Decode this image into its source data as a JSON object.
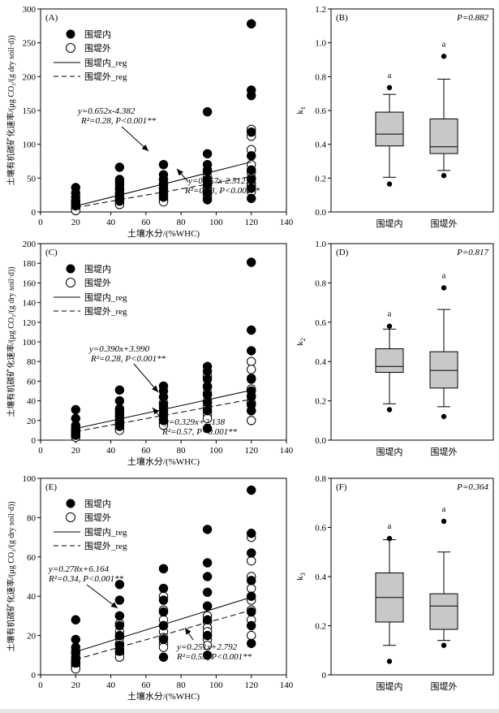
{
  "chart_data": [
    {
      "panel": "(A)",
      "type": "scatter",
      "xlabel": "土壤水分/(%WHC)",
      "ylabel": "土壤有机碳矿化速率/(μg CO₂/(g dry soil·d))",
      "xlim": [
        0,
        140
      ],
      "ylim": [
        0,
        300
      ],
      "xticks": [
        0,
        20,
        40,
        60,
        80,
        100,
        120,
        140
      ],
      "yticks": [
        0,
        50,
        100,
        150,
        200,
        250,
        300
      ],
      "legend": [
        "围堤内",
        "围堤外",
        "围堤内_reg",
        "围堤外_reg"
      ],
      "legend_position": "top-left",
      "series": [
        {
          "name": "围堤内",
          "marker": "filled-circle",
          "x": [
            20,
            20,
            20,
            20,
            20,
            20,
            45,
            45,
            45,
            45,
            45,
            45,
            45,
            70,
            70,
            70,
            70,
            70,
            70,
            70,
            95,
            95,
            95,
            95,
            95,
            95,
            95,
            95,
            120,
            120,
            120,
            120,
            120,
            120,
            120,
            120,
            120
          ],
          "y": [
            36,
            28,
            22,
            17,
            12,
            9,
            66,
            48,
            44,
            35,
            28,
            22,
            16,
            70,
            55,
            48,
            42,
            35,
            28,
            22,
            148,
            86,
            70,
            60,
            48,
            40,
            28,
            18,
            278,
            180,
            172,
            118,
            83,
            62,
            48,
            35,
            20
          ]
        },
        {
          "name": "围堤外",
          "marker": "open-circle",
          "x": [
            20,
            20,
            20,
            20,
            20,
            20,
            20,
            45,
            45,
            45,
            45,
            45,
            45,
            45,
            45,
            70,
            70,
            70,
            70,
            70,
            70,
            70,
            70,
            95,
            95,
            95,
            95,
            95,
            95,
            95,
            95,
            120,
            120,
            120,
            120,
            120,
            120,
            120,
            120,
            120
          ],
          "y": [
            16,
            12,
            9,
            7,
            5,
            3,
            2,
            40,
            33,
            28,
            24,
            20,
            17,
            13,
            11,
            48,
            40,
            35,
            30,
            25,
            20,
            17,
            15,
            62,
            52,
            45,
            40,
            35,
            30,
            26,
            22,
            122,
            112,
            92,
            70,
            58,
            50,
            42,
            38,
            30
          ]
        }
      ],
      "regressions": [
        {
          "name": "围堤内_reg",
          "style": "solid",
          "slope": 0.652,
          "intercept": -4.382,
          "x_range": [
            20,
            120
          ],
          "eq": "y=0.652x-4.382",
          "stats": "R²=0.28, P<0.001**"
        },
        {
          "name": "围堤外_reg",
          "style": "dashed",
          "slope": 0.457,
          "intercept": -2.512,
          "x_range": [
            20,
            120
          ],
          "eq": "y=0.457x-2.512",
          "stats": "R²=0.53, P<0.001**"
        }
      ]
    },
    {
      "panel": "(B)",
      "type": "boxplot",
      "ylabel": "k1",
      "ylim": [
        0,
        1.2
      ],
      "yticks": [
        0.0,
        0.2,
        0.4,
        0.6,
        0.8,
        1.0,
        1.2
      ],
      "p_value": "P=0.882",
      "categories": [
        "围堤内",
        "围堤外"
      ],
      "boxes": [
        {
          "whisker_low": 0.205,
          "q1": 0.39,
          "median": 0.46,
          "q3": 0.59,
          "whisker_high": 0.695,
          "outliers": [
            0.165,
            0.735
          ],
          "letter": "a"
        },
        {
          "whisker_low": 0.245,
          "q1": 0.345,
          "median": 0.385,
          "q3": 0.55,
          "whisker_high": 0.785,
          "outliers": [
            0.215,
            0.92
          ],
          "letter": "a"
        }
      ]
    },
    {
      "panel": "(C)",
      "type": "scatter",
      "xlabel": "土壤水分/(%WHC)",
      "ylabel": "土壤有机碳矿化速率/(μg CO₂/(g dry soil·d))",
      "xlim": [
        0,
        140
      ],
      "ylim": [
        0,
        200
      ],
      "xticks": [
        0,
        20,
        40,
        60,
        80,
        100,
        120,
        140
      ],
      "yticks": [
        0,
        20,
        40,
        60,
        80,
        100,
        120,
        140,
        160,
        180,
        200
      ],
      "legend": [
        "围堤内",
        "围堤外",
        "围堤内_reg",
        "围堤外_reg"
      ],
      "legend_position": "top-left",
      "series": [
        {
          "name": "围堤内",
          "marker": "filled-circle",
          "x": [
            20,
            20,
            20,
            20,
            20,
            20,
            45,
            45,
            45,
            45,
            45,
            45,
            45,
            70,
            70,
            70,
            70,
            70,
            70,
            70,
            95,
            95,
            95,
            95,
            95,
            95,
            95,
            95,
            120,
            120,
            120,
            120,
            120,
            120,
            120,
            120
          ],
          "y": [
            31,
            22,
            15,
            12,
            9,
            5,
            51,
            40,
            32,
            28,
            24,
            18,
            14,
            55,
            50,
            44,
            36,
            30,
            25,
            20,
            75,
            70,
            62,
            54,
            46,
            38,
            30,
            12,
            181,
            112,
            91,
            62,
            50,
            44,
            36,
            30
          ]
        },
        {
          "name": "围堤外",
          "marker": "open-circle",
          "x": [
            20,
            20,
            20,
            20,
            20,
            20,
            20,
            45,
            45,
            45,
            45,
            45,
            45,
            45,
            45,
            70,
            70,
            70,
            70,
            70,
            70,
            70,
            70,
            95,
            95,
            95,
            95,
            95,
            95,
            95,
            95,
            120,
            120,
            120,
            120,
            120,
            120,
            120,
            120
          ],
          "y": [
            12,
            10,
            8,
            7,
            5,
            4,
            3,
            30,
            27,
            24,
            21,
            18,
            15,
            12,
            10,
            44,
            38,
            33,
            29,
            25,
            21,
            17,
            15,
            65,
            55,
            48,
            40,
            34,
            30,
            26,
            22,
            80,
            72,
            63,
            52,
            45,
            38,
            30,
            20
          ]
        }
      ],
      "regressions": [
        {
          "name": "围堤内_reg",
          "style": "solid",
          "slope": 0.39,
          "intercept": 3.99,
          "x_range": [
            20,
            120
          ],
          "eq": "y=0.390x+3.990",
          "stats": "R²=0.28, P<0.001**"
        },
        {
          "name": "围堤外_reg",
          "style": "dashed",
          "slope": 0.329,
          "intercept": 2.138,
          "x_range": [
            20,
            120
          ],
          "eq": "y=0.329x+2.138",
          "stats": "R²=0.57, P<0.001**"
        }
      ]
    },
    {
      "panel": "(D)",
      "type": "boxplot",
      "ylabel": "k2",
      "ylim": [
        0,
        1.0
      ],
      "yticks": [
        0.0,
        0.2,
        0.4,
        0.6,
        0.8,
        1.0
      ],
      "p_value": "P=0.817",
      "categories": [
        "围堤内",
        "围堤外"
      ],
      "boxes": [
        {
          "whisker_low": 0.185,
          "q1": 0.345,
          "median": 0.375,
          "q3": 0.465,
          "whisker_high": 0.565,
          "outliers": [
            0.155,
            0.58
          ],
          "letter": "a"
        },
        {
          "whisker_low": 0.17,
          "q1": 0.265,
          "median": 0.355,
          "q3": 0.45,
          "whisker_high": 0.665,
          "outliers": [
            0.12,
            0.775
          ],
          "letter": "a"
        }
      ]
    },
    {
      "panel": "(E)",
      "type": "scatter",
      "xlabel": "土壤水分/(%WHC)",
      "ylabel": "土壤有机碳矿化速率/(μg CO₂/(g dry soil·d))",
      "xlim": [
        0,
        140
      ],
      "ylim": [
        0,
        100
      ],
      "xticks": [
        0,
        20,
        40,
        60,
        80,
        100,
        120,
        140
      ],
      "yticks": [
        0,
        20,
        40,
        60,
        80,
        100
      ],
      "legend": [
        "围堤内",
        "围堤外",
        "围堤内_reg",
        "围堤外_reg"
      ],
      "legend_position": "top-left",
      "series": [
        {
          "name": "围堤内",
          "marker": "filled-circle",
          "x": [
            20,
            20,
            20,
            20,
            20,
            20,
            45,
            45,
            45,
            45,
            45,
            45,
            45,
            70,
            70,
            70,
            70,
            70,
            70,
            70,
            95,
            95,
            95,
            95,
            95,
            95,
            95,
            95,
            120,
            120,
            120,
            120,
            120,
            120,
            120,
            120
          ],
          "y": [
            28,
            18,
            14,
            11,
            8,
            6,
            46,
            38,
            30,
            25,
            20,
            15,
            12,
            54,
            44,
            38,
            32,
            25,
            18,
            9,
            74,
            57,
            50,
            42,
            35,
            28,
            20,
            10,
            94,
            72,
            62,
            48,
            40,
            32,
            25,
            16
          ]
        },
        {
          "name": "围堤外",
          "marker": "open-circle",
          "x": [
            20,
            20,
            20,
            20,
            20,
            20,
            20,
            45,
            45,
            45,
            45,
            45,
            45,
            45,
            45,
            70,
            70,
            70,
            70,
            70,
            70,
            70,
            70,
            95,
            95,
            95,
            95,
            95,
            95,
            95,
            95,
            120,
            120,
            120,
            120,
            120,
            120,
            120,
            120
          ],
          "y": [
            12,
            9,
            7,
            6,
            5,
            4,
            3,
            30,
            26,
            22,
            19,
            16,
            13,
            11,
            9,
            40,
            33,
            28,
            25,
            22,
            19,
            16,
            14,
            35,
            30,
            27,
            24,
            22,
            20,
            18,
            15,
            70,
            58,
            50,
            44,
            38,
            33,
            28,
            20
          ]
        }
      ],
      "regressions": [
        {
          "name": "围堤内_reg",
          "style": "solid",
          "slope": 0.278,
          "intercept": 6.164,
          "x_range": [
            20,
            120
          ],
          "eq": "y=0.278x+6.164",
          "stats": "R²=0.34, P<0.001**"
        },
        {
          "name": "围堤外_reg",
          "style": "dashed",
          "slope": 0.251,
          "intercept": 2.792,
          "x_range": [
            20,
            120
          ],
          "eq": "y=0.251x+2.792",
          "stats": "R²=0.55, P<0.001**"
        }
      ]
    },
    {
      "panel": "(F)",
      "type": "boxplot",
      "ylabel": "k3",
      "ylim": [
        0,
        0.8
      ],
      "yticks": [
        0,
        0.2,
        0.4,
        0.6,
        0.8
      ],
      "p_value": "P=0.364",
      "categories": [
        "围堤内",
        "围堤外"
      ],
      "boxes": [
        {
          "whisker_low": 0.12,
          "q1": 0.215,
          "median": 0.315,
          "q3": 0.415,
          "whisker_high": 0.55,
          "outliers": [
            0.055,
            0.555
          ],
          "letter": "a"
        },
        {
          "whisker_low": 0.14,
          "q1": 0.185,
          "median": 0.28,
          "q3": 0.33,
          "whisker_high": 0.5,
          "outliers": [
            0.12,
            0.625
          ],
          "letter": "a"
        }
      ]
    }
  ]
}
